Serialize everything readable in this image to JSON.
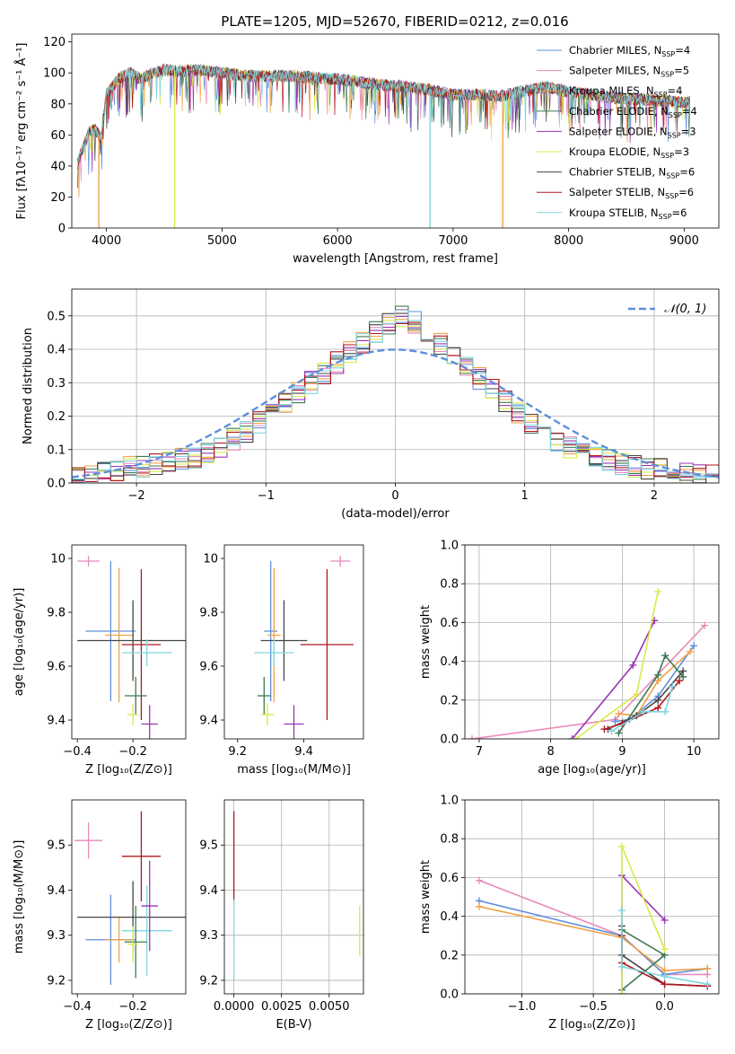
{
  "figure": {
    "title": "PLATE=1205, MJD=52670, FIBERID=0212, z=0.016"
  },
  "legend": {
    "entries": [
      {
        "text": "Chabrier MILES, N",
        "sub": "SSP",
        "tail": "=4",
        "color": "#5f8fdc"
      },
      {
        "text": "Salpeter MILES, N",
        "sub": "SSP",
        "tail": "=5",
        "color": "#e88aba"
      },
      {
        "text": "Kroupa MILES, N",
        "sub": "SSP",
        "tail": "=4",
        "color": "#f0a248"
      },
      {
        "text": "Chabrier ELODIE, N",
        "sub": "SSP",
        "tail": "=4",
        "color": "#3d7a55"
      },
      {
        "text": "Salpeter ELODIE, N",
        "sub": "SSP",
        "tail": "=3",
        "color": "#9a34b4"
      },
      {
        "text": "Kroupa ELODIE, N",
        "sub": "SSP",
        "tail": "=3",
        "color": "#d7ea4a"
      },
      {
        "text": "Chabrier STELIB, N",
        "sub": "SSP",
        "tail": "=6",
        "color": "#464646"
      },
      {
        "text": "Salpeter STELIB, N",
        "sub": "SSP",
        "tail": "=6",
        "color": "#b0171d"
      },
      {
        "text": "Kroupa STELIB, N",
        "sub": "SSP",
        "tail": "=6",
        "color": "#7fd6df"
      }
    ]
  },
  "chart_data": [
    {
      "id": "spectrum",
      "type": "line",
      "xlabel": "wavelength [Angstrom, rest frame]",
      "ylabel": "Flux [fλ10⁻¹⁷ erg cm⁻² s⁻¹ Å⁻¹]",
      "xlim": [
        3700,
        9300
      ],
      "ylim": [
        0,
        125
      ],
      "xticks": [
        4000,
        5000,
        6000,
        7000,
        8000,
        9000
      ],
      "yticks": [
        0,
        20,
        40,
        60,
        80,
        100,
        120
      ],
      "grid": false,
      "continuum": {
        "x": [
          3750,
          3800,
          3850,
          3900,
          3950,
          4000,
          4100,
          4200,
          4300,
          4400,
          4500,
          4600,
          4800,
          5000,
          5200,
          5400,
          5600,
          5800,
          6000,
          6200,
          6400,
          6600,
          6800,
          7000,
          7200,
          7400,
          7600,
          7800,
          8000,
          8200,
          8400,
          8600,
          8800,
          9000
        ],
        "y": [
          42,
          52,
          62,
          64,
          58,
          86,
          96,
          100,
          96,
          100,
          102,
          101,
          102,
          100,
          98,
          98,
          98,
          97,
          96,
          94,
          92,
          91,
          89,
          86,
          86,
          85,
          88,
          91,
          88,
          86,
          84,
          83,
          82,
          81
        ]
      },
      "dips": [
        {
          "x": 3934,
          "y": 0
        },
        {
          "x": 4590,
          "y": 0
        },
        {
          "x": 6800,
          "y": 0
        },
        {
          "x": 7430,
          "y": 0
        }
      ]
    },
    {
      "id": "residual-histogram",
      "type": "histogram",
      "xlabel": "(data-model)/error",
      "ylabel": "Normed distribution",
      "xlim": [
        -2.5,
        2.5
      ],
      "ylim": [
        0,
        0.58
      ],
      "xticks": [
        -2,
        -1,
        0,
        1,
        2
      ],
      "yticks": [
        0.0,
        0.1,
        0.2,
        0.3,
        0.4,
        0.5
      ],
      "grid": true,
      "bin_width": 0.1,
      "bin_start": -2.5,
      "base_curve": [
        0.02,
        0.025,
        0.03,
        0.04,
        0.045,
        0.05,
        0.055,
        0.06,
        0.07,
        0.08,
        0.09,
        0.11,
        0.13,
        0.15,
        0.18,
        0.21,
        0.24,
        0.27,
        0.3,
        0.33,
        0.36,
        0.39,
        0.42,
        0.45,
        0.48,
        0.5,
        0.48,
        0.45,
        0.42,
        0.38,
        0.35,
        0.31,
        0.28,
        0.24,
        0.21,
        0.18,
        0.16,
        0.13,
        0.11,
        0.09,
        0.08,
        0.07,
        0.06,
        0.05,
        0.045,
        0.04,
        0.035,
        0.03,
        0.025,
        0.02
      ],
      "reference": {
        "label": "𝒩(0, 1)",
        "mean": 0,
        "sigma": 1,
        "color": "#5f8fdc"
      }
    },
    {
      "id": "age-vs-Z",
      "type": "errorbar",
      "xlabel": "Z [log₁₀(Z/Z⊙)]",
      "ylabel": "age  [log₁₀(age/yr)]",
      "xlim": [
        -0.42,
        -0.01
      ],
      "ylim": [
        9.33,
        10.05
      ],
      "xticks": [
        -0.4,
        -0.2
      ],
      "yticks": [
        9.4,
        9.6,
        9.8,
        10.0
      ],
      "grid": false,
      "points": [
        {
          "x": -0.36,
          "y": 9.99,
          "xerr": 0.04,
          "yerr": 0.02,
          "color": "#e88aba"
        },
        {
          "x": -0.28,
          "y": 9.73,
          "xerr": 0.09,
          "yerr": 0.26,
          "color": "#5f8fdc"
        },
        {
          "x": -0.25,
          "y": 9.715,
          "xerr": 0.05,
          "yerr": 0.25,
          "color": "#f0a248"
        },
        {
          "x": -0.2,
          "y": 9.695,
          "xerr": 0.2,
          "yerr": 0.15,
          "color": "#464646"
        },
        {
          "x": -0.17,
          "y": 9.68,
          "xerr": 0.07,
          "yerr": 0.28,
          "color": "#b0171d"
        },
        {
          "x": -0.15,
          "y": 9.65,
          "xerr": 0.09,
          "yerr": 0.05,
          "color": "#7fd6df"
        },
        {
          "x": -0.19,
          "y": 9.49,
          "xerr": 0.04,
          "yerr": 0.07,
          "color": "#3d7a55"
        },
        {
          "x": -0.14,
          "y": 9.385,
          "xerr": 0.03,
          "yerr": 0.07,
          "color": "#9a34b4"
        },
        {
          "x": -0.2,
          "y": 9.42,
          "xerr": 0.02,
          "yerr": 0.04,
          "color": "#d7ea4a"
        }
      ]
    },
    {
      "id": "age-vs-mass",
      "type": "errorbar",
      "xlabel": "mass [log₁₀(M/M⊙)]",
      "ylabel": "",
      "xlim": [
        9.16,
        9.58
      ],
      "ylim": [
        9.33,
        10.05
      ],
      "xticks": [
        9.2,
        9.4
      ],
      "yticks": [
        9.4,
        9.6,
        9.8,
        10.0
      ],
      "grid": false,
      "points": [
        {
          "x": 9.51,
          "y": 9.99,
          "xerr": 0.03,
          "yerr": 0.02,
          "color": "#e88aba"
        },
        {
          "x": 9.3,
          "y": 9.73,
          "xerr": 0.02,
          "yerr": 0.26,
          "color": "#5f8fdc"
        },
        {
          "x": 9.31,
          "y": 9.715,
          "xerr": 0.02,
          "yerr": 0.25,
          "color": "#f0a248"
        },
        {
          "x": 9.34,
          "y": 9.695,
          "xerr": 0.07,
          "yerr": 0.15,
          "color": "#464646"
        },
        {
          "x": 9.47,
          "y": 9.68,
          "xerr": 0.08,
          "yerr": 0.28,
          "color": "#b0171d"
        },
        {
          "x": 9.31,
          "y": 9.65,
          "xerr": 0.06,
          "yerr": 0.05,
          "color": "#7fd6df"
        },
        {
          "x": 9.28,
          "y": 9.49,
          "xerr": 0.02,
          "yerr": 0.07,
          "color": "#3d7a55"
        },
        {
          "x": 9.37,
          "y": 9.385,
          "xerr": 0.03,
          "yerr": 0.07,
          "color": "#9a34b4"
        },
        {
          "x": 9.29,
          "y": 9.42,
          "xerr": 0.02,
          "yerr": 0.04,
          "color": "#d7ea4a"
        }
      ]
    },
    {
      "id": "mass-weight-vs-age",
      "type": "line",
      "xlabel": "age  [log₁₀(age/yr)]",
      "ylabel": "mass weight",
      "xlim": [
        6.8,
        10.35
      ],
      "ylim": [
        0,
        1.0
      ],
      "xticks": [
        7,
        8,
        9,
        10
      ],
      "yticks": [
        0.0,
        0.2,
        0.4,
        0.6,
        0.8,
        1.0
      ],
      "grid": true,
      "series": [
        {
          "color": "#e88aba",
          "x": [
            6.9,
            8.9,
            10.15
          ],
          "y": [
            0.0,
            0.1,
            0.585
          ]
        },
        {
          "color": "#5f8fdc",
          "x": [
            8.9,
            9.1,
            9.5,
            10.0
          ],
          "y": [
            0.09,
            0.1,
            0.22,
            0.48
          ]
        },
        {
          "color": "#f0a248",
          "x": [
            8.95,
            9.2,
            9.5,
            9.95
          ],
          "y": [
            0.13,
            0.12,
            0.3,
            0.45
          ]
        },
        {
          "color": "#3d7a55",
          "x": [
            8.95,
            9.5,
            9.6,
            9.85
          ],
          "y": [
            0.03,
            0.33,
            0.43,
            0.32
          ]
        },
        {
          "color": "#9a34b4",
          "x": [
            8.3,
            9.15,
            9.45
          ],
          "y": [
            0.0,
            0.38,
            0.61
          ]
        },
        {
          "color": "#d7ea4a",
          "x": [
            8.35,
            9.2,
            9.5
          ],
          "y": [
            0.0,
            0.23,
            0.76
          ]
        },
        {
          "color": "#464646",
          "x": [
            8.8,
            9.2,
            9.5,
            9.85
          ],
          "y": [
            0.05,
            0.12,
            0.2,
            0.35
          ]
        },
        {
          "color": "#b0171d",
          "x": [
            8.75,
            9.0,
            9.5,
            9.8
          ],
          "y": [
            0.05,
            0.08,
            0.16,
            0.3
          ]
        },
        {
          "color": "#7fd6df",
          "x": [
            8.85,
            9.3,
            9.6,
            9.7
          ],
          "y": [
            0.04,
            0.14,
            0.14,
            0.27
          ]
        }
      ]
    },
    {
      "id": "mass-vs-Z",
      "type": "errorbar",
      "xlabel": "Z [log₁₀(Z/Z⊙)]",
      "ylabel": "mass [log₁₀(M/M⊙)]",
      "xlim": [
        -0.42,
        -0.01
      ],
      "ylim": [
        9.17,
        9.6
      ],
      "xticks": [
        -0.4,
        -0.2
      ],
      "yticks": [
        9.2,
        9.3,
        9.4,
        9.5
      ],
      "grid": false,
      "points": [
        {
          "x": -0.36,
          "y": 9.51,
          "xerr": 0.05,
          "yerr": 0.04,
          "color": "#e88aba"
        },
        {
          "x": -0.28,
          "y": 9.29,
          "xerr": 0.09,
          "yerr": 0.1,
          "color": "#5f8fdc"
        },
        {
          "x": -0.25,
          "y": 9.29,
          "xerr": 0.05,
          "yerr": 0.05,
          "color": "#f0a248"
        },
        {
          "x": -0.2,
          "y": 9.34,
          "xerr": 0.2,
          "yerr": 0.08,
          "color": "#464646"
        },
        {
          "x": -0.17,
          "y": 9.475,
          "xerr": 0.07,
          "yerr": 0.1,
          "color": "#b0171d"
        },
        {
          "x": -0.15,
          "y": 9.31,
          "xerr": 0.09,
          "yerr": 0.1,
          "color": "#7fd6df"
        },
        {
          "x": -0.19,
          "y": 9.285,
          "xerr": 0.04,
          "yerr": 0.08,
          "color": "#3d7a55"
        },
        {
          "x": -0.14,
          "y": 9.365,
          "xerr": 0.03,
          "yerr": 0.1,
          "color": "#9a34b4"
        },
        {
          "x": -0.2,
          "y": 9.28,
          "xerr": 0.02,
          "yerr": 0.04,
          "color": "#d7ea4a"
        }
      ]
    },
    {
      "id": "mass-vs-EBV",
      "type": "errorbar",
      "xlabel": "E(B-V)",
      "ylabel": "",
      "xlim": [
        -0.0005,
        0.0068
      ],
      "ylim": [
        9.17,
        9.6
      ],
      "xticks": [
        0.0,
        0.0025,
        0.005
      ],
      "xticklabels": [
        "0.0000",
        "0.0025",
        "0.0050"
      ],
      "yticks": [
        9.2,
        9.3,
        9.4,
        9.5
      ],
      "grid": true,
      "points": [
        {
          "x": 0.0,
          "y": 9.475,
          "xerr": 0,
          "yerr": 0.1,
          "color": "#b0171d"
        },
        {
          "x": 0.0,
          "y": 9.29,
          "xerr": 0,
          "yerr": 0.09,
          "color": "#7fd6df"
        },
        {
          "x": 0.0066,
          "y": 9.31,
          "xerr": 0,
          "yerr": 0.055,
          "color": "#d7ea4a"
        }
      ]
    },
    {
      "id": "mass-weight-vs-Z",
      "type": "line",
      "xlabel": "Z [log₁₀(Z/Z⊙)]",
      "ylabel": "mass weight",
      "xlim": [
        -1.4,
        0.38
      ],
      "ylim": [
        0,
        1.0
      ],
      "xticks": [
        -1.0,
        -0.5,
        0.0
      ],
      "xticklabels": [
        "−1.0",
        "−0.5",
        "0.0"
      ],
      "yticks": [
        0.0,
        0.2,
        0.4,
        0.6,
        0.8,
        1.0
      ],
      "grid": true,
      "series": [
        {
          "color": "#e88aba",
          "x": [
            -1.3,
            -0.3,
            0.0,
            0.3
          ],
          "y": [
            0.585,
            0.3,
            0.1,
            0.1
          ]
        },
        {
          "color": "#5f8fdc",
          "x": [
            -1.3,
            -0.3,
            0.0,
            0.3
          ],
          "y": [
            0.48,
            0.3,
            0.1,
            0.13
          ]
        },
        {
          "color": "#f0a248",
          "x": [
            -1.3,
            -0.3,
            0.0,
            0.3
          ],
          "y": [
            0.45,
            0.29,
            0.12,
            0.13
          ]
        },
        {
          "color": "#3d7a55",
          "x": [
            -0.3,
            0.0,
            -0.3
          ],
          "y": [
            0.33,
            0.2,
            0.02
          ]
        },
        {
          "color": "#9a34b4",
          "x": [
            -0.3,
            -0.3,
            0.0
          ],
          "y": [
            0.0,
            0.61,
            0.38
          ]
        },
        {
          "color": "#d7ea4a",
          "x": [
            -0.3,
            -0.3,
            0.0
          ],
          "y": [
            0.0,
            0.76,
            0.23
          ]
        },
        {
          "color": "#464646",
          "x": [
            -0.3,
            -0.3,
            0.0,
            0.3
          ],
          "y": [
            0.35,
            0.2,
            0.05,
            0.04
          ]
        },
        {
          "color": "#b0171d",
          "x": [
            -0.3,
            -0.3,
            0.0,
            0.3
          ],
          "y": [
            0.3,
            0.16,
            0.05,
            0.04
          ]
        },
        {
          "color": "#7fd6df",
          "x": [
            -0.3,
            -0.3,
            0.0,
            0.3
          ],
          "y": [
            0.43,
            0.14,
            0.09,
            0.05
          ]
        }
      ]
    }
  ]
}
